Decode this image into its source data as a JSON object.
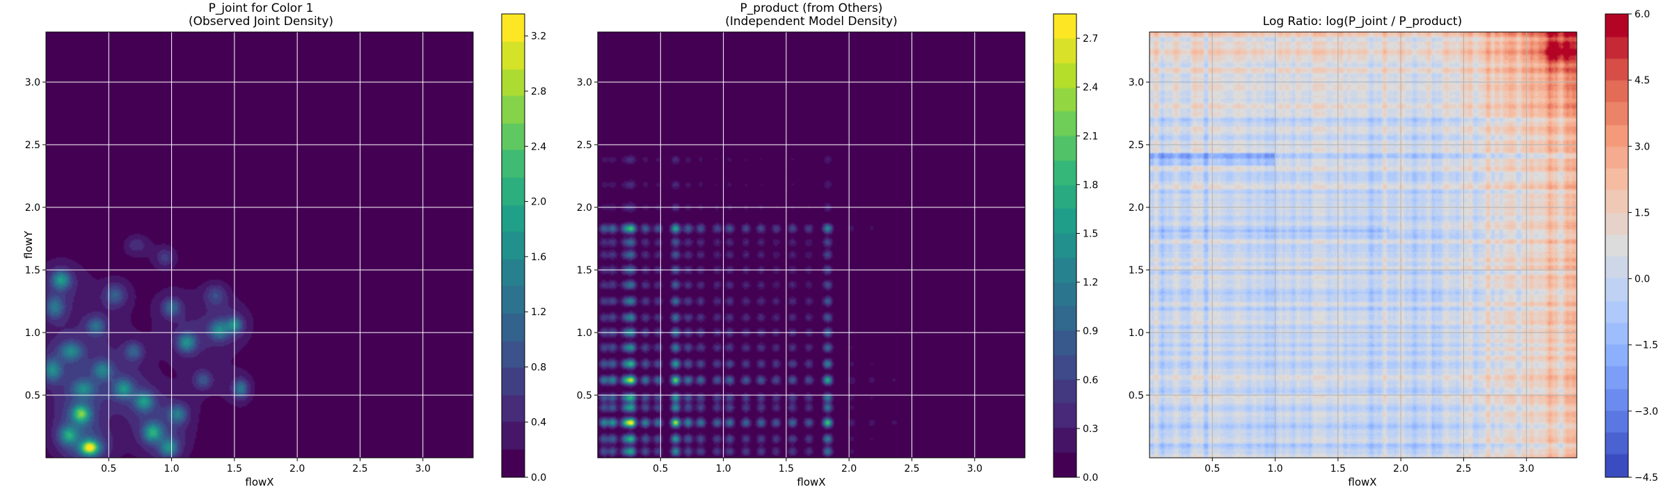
{
  "chart_data": [
    {
      "type": "heatmap",
      "title": "P_joint for Color 1",
      "subtitle": "(Observed Joint Density)",
      "xlabel": "flowX",
      "ylabel": "flowY",
      "xlim": [
        0.0,
        3.4
      ],
      "ylim": [
        0.0,
        3.4
      ],
      "xticks": [
        "0.5",
        "1.0",
        "1.5",
        "2.0",
        "2.5",
        "3.0"
      ],
      "yticks": [
        "0.5",
        "1.0",
        "1.5",
        "2.0",
        "2.5",
        "3.0"
      ],
      "grid": true,
      "colormap": "viridis",
      "colorbar": {
        "min": 0.0,
        "max": 3.36,
        "ticks": [
          "0.0",
          "0.4",
          "0.8",
          "1.2",
          "1.6",
          "2.0",
          "2.4",
          "2.8",
          "3.2"
        ]
      },
      "background_value": 0.0,
      "peaks": [
        {
          "x": 0.35,
          "y": 0.08,
          "value": 2.6,
          "sx": 0.05,
          "sy": 0.04
        },
        {
          "x": 0.28,
          "y": 0.35,
          "value": 1.9,
          "sx": 0.05,
          "sy": 0.05
        },
        {
          "x": 0.12,
          "y": 1.42,
          "value": 1.4,
          "sx": 0.05,
          "sy": 0.05
        },
        {
          "x": 0.07,
          "y": 1.2,
          "value": 1.0,
          "sx": 0.05,
          "sy": 0.06
        },
        {
          "x": 0.05,
          "y": 0.7,
          "value": 1.2,
          "sx": 0.05,
          "sy": 0.06
        },
        {
          "x": 0.2,
          "y": 0.85,
          "value": 1.1,
          "sx": 0.06,
          "sy": 0.05
        },
        {
          "x": 0.45,
          "y": 0.7,
          "value": 1.0,
          "sx": 0.05,
          "sy": 0.05
        },
        {
          "x": 0.62,
          "y": 0.55,
          "value": 1.2,
          "sx": 0.05,
          "sy": 0.05
        },
        {
          "x": 0.78,
          "y": 0.45,
          "value": 1.3,
          "sx": 0.05,
          "sy": 0.05
        },
        {
          "x": 0.85,
          "y": 0.2,
          "value": 1.5,
          "sx": 0.05,
          "sy": 0.05
        },
        {
          "x": 0.98,
          "y": 0.08,
          "value": 1.2,
          "sx": 0.05,
          "sy": 0.05
        },
        {
          "x": 1.05,
          "y": 0.35,
          "value": 1.0,
          "sx": 0.05,
          "sy": 0.05
        },
        {
          "x": 1.12,
          "y": 0.92,
          "value": 1.3,
          "sx": 0.05,
          "sy": 0.05
        },
        {
          "x": 1.38,
          "y": 1.02,
          "value": 1.1,
          "sx": 0.05,
          "sy": 0.05
        },
        {
          "x": 1.5,
          "y": 1.06,
          "value": 1.2,
          "sx": 0.04,
          "sy": 0.04
        },
        {
          "x": 1.55,
          "y": 0.55,
          "value": 1.1,
          "sx": 0.04,
          "sy": 0.05
        },
        {
          "x": 1.0,
          "y": 1.2,
          "value": 0.9,
          "sx": 0.05,
          "sy": 0.05
        },
        {
          "x": 0.55,
          "y": 1.3,
          "value": 0.8,
          "sx": 0.06,
          "sy": 0.06
        },
        {
          "x": 0.4,
          "y": 1.05,
          "value": 0.9,
          "sx": 0.05,
          "sy": 0.05
        },
        {
          "x": 0.18,
          "y": 0.18,
          "value": 1.3,
          "sx": 0.05,
          "sy": 0.05
        },
        {
          "x": 0.7,
          "y": 0.85,
          "value": 0.8,
          "sx": 0.05,
          "sy": 0.05
        },
        {
          "x": 0.3,
          "y": 0.55,
          "value": 1.0,
          "sx": 0.06,
          "sy": 0.05
        },
        {
          "x": 1.25,
          "y": 0.62,
          "value": 0.7,
          "sx": 0.05,
          "sy": 0.05
        },
        {
          "x": 1.35,
          "y": 1.3,
          "value": 0.6,
          "sx": 0.06,
          "sy": 0.06
        },
        {
          "x": 0.72,
          "y": 1.7,
          "value": 0.4,
          "sx": 0.06,
          "sy": 0.05
        },
        {
          "x": 0.95,
          "y": 1.6,
          "value": 0.5,
          "sx": 0.05,
          "sy": 0.05
        }
      ]
    },
    {
      "type": "heatmap",
      "title": "P_product (from Others)",
      "subtitle": "(Independent Model Density)",
      "xlabel": "flowX",
      "ylabel": "",
      "xlim": [
        0.0,
        3.4
      ],
      "ylim": [
        0.0,
        3.4
      ],
      "xticks": [
        "0.5",
        "1.0",
        "1.5",
        "2.0",
        "2.5",
        "3.0"
      ],
      "yticks": [
        "0.5",
        "1.0",
        "1.5",
        "2.0",
        "2.5",
        "3.0"
      ],
      "grid": true,
      "colormap": "viridis",
      "colorbar": {
        "min": 0.0,
        "max": 2.85,
        "ticks": [
          "0.0",
          "0.3",
          "0.6",
          "0.9",
          "1.2",
          "1.5",
          "1.8",
          "2.1",
          "2.4",
          "2.7"
        ]
      },
      "marginal_x_peaks": [
        {
          "x": 0.05,
          "w": 0.8
        },
        {
          "x": 0.12,
          "w": 0.9
        },
        {
          "x": 0.22,
          "w": 1.0
        },
        {
          "x": 0.27,
          "w": 1.6
        },
        {
          "x": 0.38,
          "w": 0.8
        },
        {
          "x": 0.48,
          "w": 0.7
        },
        {
          "x": 0.62,
          "w": 1.5
        },
        {
          "x": 0.72,
          "w": 0.8
        },
        {
          "x": 0.82,
          "w": 0.7
        },
        {
          "x": 0.95,
          "w": 0.6
        },
        {
          "x": 1.05,
          "w": 0.7
        },
        {
          "x": 1.18,
          "w": 0.6
        },
        {
          "x": 1.3,
          "w": 0.6
        },
        {
          "x": 1.42,
          "w": 0.5
        },
        {
          "x": 1.55,
          "w": 0.6
        },
        {
          "x": 1.68,
          "w": 0.5
        },
        {
          "x": 1.83,
          "w": 1.2
        },
        {
          "x": 2.02,
          "w": 0.2
        },
        {
          "x": 2.18,
          "w": 0.15
        },
        {
          "x": 2.36,
          "w": 0.12
        }
      ],
      "marginal_y_peaks": [
        {
          "y": 0.05,
          "w": 0.9
        },
        {
          "y": 0.15,
          "w": 1.0
        },
        {
          "y": 0.28,
          "w": 1.6
        },
        {
          "y": 0.4,
          "w": 0.9
        },
        {
          "y": 0.48,
          "w": 1.0
        },
        {
          "y": 0.62,
          "w": 1.4
        },
        {
          "y": 0.75,
          "w": 1.0
        },
        {
          "y": 0.88,
          "w": 0.8
        },
        {
          "y": 1.0,
          "w": 0.8
        },
        {
          "y": 1.12,
          "w": 0.7
        },
        {
          "y": 1.25,
          "w": 0.7
        },
        {
          "y": 1.38,
          "w": 0.6
        },
        {
          "y": 1.5,
          "w": 0.6
        },
        {
          "y": 1.62,
          "w": 0.55
        },
        {
          "y": 1.72,
          "w": 0.55
        },
        {
          "y": 1.83,
          "w": 1.1
        },
        {
          "y": 2.0,
          "w": 0.3
        },
        {
          "y": 2.18,
          "w": 0.25
        },
        {
          "y": 2.38,
          "w": 0.25
        }
      ]
    },
    {
      "type": "heatmap",
      "title": "Log Ratio: log(P_joint / P_product)",
      "xlabel": "flowX",
      "ylabel": "",
      "xlim": [
        0.0,
        3.4
      ],
      "ylim": [
        0.0,
        3.4
      ],
      "xticks": [
        "0.5",
        "1.0",
        "1.5",
        "2.0",
        "2.5",
        "3.0"
      ],
      "yticks": [
        "0.5",
        "1.0",
        "1.5",
        "2.0",
        "2.5",
        "3.0"
      ],
      "grid": true,
      "colormap": "coolwarm",
      "colorbar": {
        "min": -4.5,
        "max": 6.0,
        "ticks": [
          "6.0",
          "4.5",
          "3.0",
          "1.5",
          "0.0",
          "−1.5",
          "−3.0",
          "−4.5"
        ]
      },
      "hot_corner": {
        "x": 3.25,
        "y": 3.25,
        "value": 5.8
      }
    }
  ],
  "colors": {
    "viridis": [
      "#440154",
      "#482878",
      "#3e4a89",
      "#31688e",
      "#26828e",
      "#1f9e89",
      "#35b779",
      "#6ece58",
      "#b5de2b",
      "#fde725"
    ],
    "coolwarm": [
      "#3b4cc0",
      "#6282ea",
      "#8db0fe",
      "#b8d0f9",
      "#dddcdc",
      "#f5c4ac",
      "#f49a7b",
      "#de604d",
      "#b40426"
    ],
    "grid": "#ffffff",
    "grid_ratio": "#b0b0b0"
  }
}
